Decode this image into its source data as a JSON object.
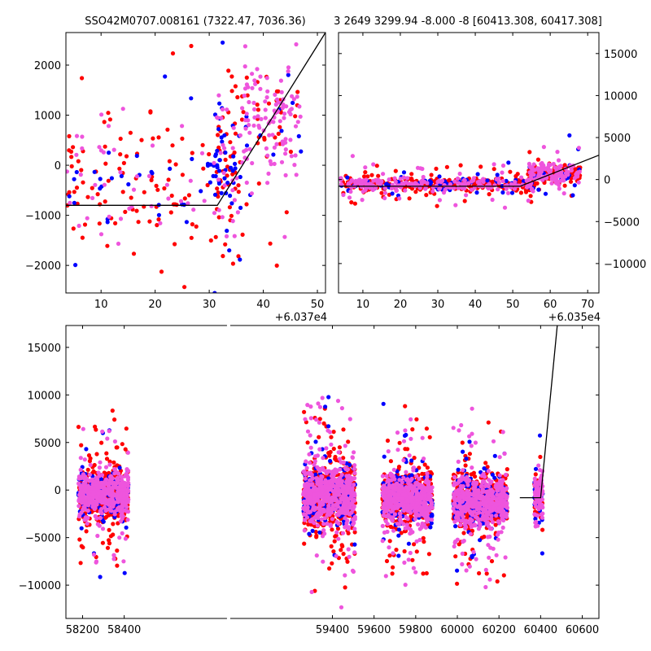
{
  "figure": {
    "title_left": "SSO42M0707.008161 (7322.47, 7036.36)",
    "title_right": "3 2649 3299.94 -8.000 -8 [60413.308, 60417.308]"
  },
  "colors": {
    "red": "#ff0000",
    "blue": "#0000ff",
    "pink": "#ee55dd",
    "fit_line": "#000000"
  },
  "chart_data": [
    {
      "name": "zoom-short",
      "type": "scatter",
      "xlim": [
        3.5,
        51.5
      ],
      "ylim": [
        -2550,
        2650
      ],
      "x_offset_label": "+6.037e4",
      "x_ticks": [
        10,
        20,
        30,
        40,
        50
      ],
      "y_ticks": [
        -2000,
        -1000,
        0,
        1000,
        2000
      ],
      "y_axis_side": "left",
      "fit_line": [
        [
          3.5,
          -800
        ],
        [
          31.5,
          -800
        ],
        [
          51.5,
          2650
        ]
      ],
      "grid": false,
      "clusters": [
        {
          "x_range": [
            3.5,
            35
          ],
          "y_center": -400,
          "y_spread": 700,
          "n_red": 120,
          "n_blue": 45,
          "n_pink": 50
        },
        {
          "x_range": [
            31,
            36
          ],
          "y_center": -100,
          "y_spread": 800,
          "n_red": 35,
          "n_blue": 40,
          "n_pink": 20
        },
        {
          "x_range": [
            36,
            47
          ],
          "y_center": 900,
          "y_spread": 650,
          "n_red": 40,
          "n_blue": 15,
          "n_pink": 110
        }
      ]
    },
    {
      "name": "zoom-medium",
      "type": "scatter",
      "xlim": [
        3.5,
        73
      ],
      "ylim": [
        -13500,
        17500
      ],
      "x_offset_label": "+6.035e4",
      "x_ticks": [
        10,
        20,
        30,
        40,
        50,
        60,
        70
      ],
      "y_ticks": [
        -10000,
        -5000,
        0,
        5000,
        10000,
        15000
      ],
      "y_axis_side": "right",
      "fit_line": [
        [
          3.5,
          -800
        ],
        [
          52,
          -800
        ],
        [
          73,
          2900
        ]
      ],
      "grid": false,
      "clusters": [
        {
          "x_range": [
            4,
            56
          ],
          "y_center": -600,
          "y_spread": 450,
          "n_red": 260,
          "n_blue": 80,
          "n_pink": 200
        },
        {
          "x_range": [
            54,
            68
          ],
          "y_center": 700,
          "y_spread": 650,
          "n_red": 90,
          "n_blue": 25,
          "n_pink": 110
        }
      ]
    },
    {
      "name": "full-range",
      "type": "scatter",
      "xlim": [
        58120,
        60680
      ],
      "ylim": [
        -13500,
        17300
      ],
      "x_ticks": [
        58200,
        58400,
        59400,
        59600,
        59800,
        60000,
        60200,
        60400,
        60600
      ],
      "y_ticks": [
        -10000,
        -5000,
        0,
        5000,
        10000,
        15000
      ],
      "y_axis_side": "left",
      "axis_break_between": [
        58420,
        59250
      ],
      "fit_line": [
        [
          60300,
          -800
        ],
        [
          60400,
          -800
        ],
        [
          60480,
          17300
        ]
      ],
      "grid": false,
      "clusters": [
        {
          "x_range": [
            58180,
            58420
          ],
          "y_center": -400,
          "y_spread": 1200,
          "n_red": 500,
          "n_blue": 160,
          "n_pink": 450
        },
        {
          "x_range": [
            59260,
            59510
          ],
          "y_center": -600,
          "y_spread": 1500,
          "n_red": 560,
          "n_blue": 200,
          "n_pink": 520
        },
        {
          "x_range": [
            59640,
            59880
          ],
          "y_center": -900,
          "y_spread": 1300,
          "n_red": 460,
          "n_blue": 200,
          "n_pink": 460
        },
        {
          "x_range": [
            59980,
            60240
          ],
          "y_center": -1200,
          "y_spread": 1300,
          "n_red": 450,
          "n_blue": 190,
          "n_pink": 470
        },
        {
          "x_range": [
            60370,
            60410
          ],
          "y_center": -700,
          "y_spread": 1100,
          "n_red": 40,
          "n_blue": 30,
          "n_pink": 90
        }
      ]
    }
  ]
}
